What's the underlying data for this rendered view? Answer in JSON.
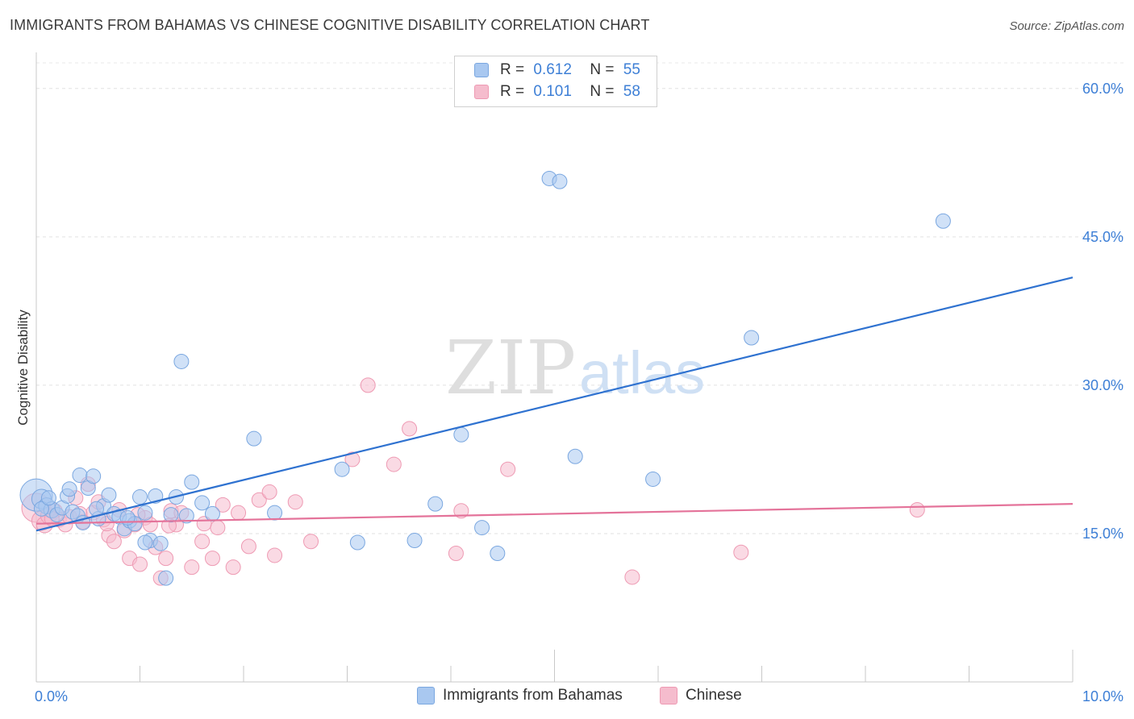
{
  "header": {
    "title": "IMMIGRANTS FROM BAHAMAS VS CHINESE COGNITIVE DISABILITY CORRELATION CHART",
    "source": "Source: ZipAtlas.com"
  },
  "watermark": {
    "zip": "ZIP",
    "atlas": "atlas"
  },
  "legend": {
    "r_label": "R =",
    "n_label": "N =",
    "rows": [
      {
        "r": "0.612",
        "n": "55"
      },
      {
        "r": "0.101",
        "n": "58"
      }
    ]
  },
  "colors": {
    "series1_fill": "#a9c8f0",
    "series1_stroke": "#7aa7e0",
    "series1_line": "#2f72d0",
    "series2_fill": "#f5bccd",
    "series2_stroke": "#ee9ab3",
    "series2_line": "#e4739a",
    "axis_label": "#3d7fd6"
  },
  "chart_data": {
    "type": "scatter",
    "title": "IMMIGRANTS FROM BAHAMAS VS CHINESE COGNITIVE DISABILITY CORRELATION CHART",
    "xlabel": "",
    "ylabel": "Cognitive Disability",
    "xlim": [
      0,
      10
    ],
    "ylim": [
      0,
      63
    ],
    "x_tick_labels": [
      "0.0%",
      "10.0%"
    ],
    "y_ticks": [
      15,
      30,
      45,
      60
    ],
    "y_tick_labels": [
      "15.0%",
      "30.0%",
      "45.0%",
      "60.0%"
    ],
    "grid": "horizontal dashed",
    "legend_placement": "top-center and bottom",
    "series": [
      {
        "name": "Immigrants from Bahamas",
        "r": 0.612,
        "n": 55,
        "trend": [
          [
            0,
            15.3
          ],
          [
            10,
            40.9
          ]
        ],
        "points": [
          [
            0.0,
            18.9,
            20
          ],
          [
            0.05,
            18.5,
            12
          ],
          [
            0.1,
            17.8,
            10
          ],
          [
            0.15,
            17.4,
            10
          ],
          [
            0.2,
            16.9,
            9
          ],
          [
            0.25,
            17.6,
            9
          ],
          [
            0.3,
            18.8,
            9
          ],
          [
            0.35,
            17.2,
            9
          ],
          [
            0.4,
            16.8,
            9
          ],
          [
            0.45,
            16.1,
            9
          ],
          [
            0.42,
            20.9,
            9
          ],
          [
            0.5,
            19.6,
            9
          ],
          [
            0.55,
            20.8,
            9
          ],
          [
            0.6,
            16.5,
            9
          ],
          [
            0.65,
            17.8,
            9
          ],
          [
            0.7,
            18.9,
            9
          ],
          [
            0.75,
            17.0,
            9
          ],
          [
            0.8,
            16.7,
            9
          ],
          [
            0.85,
            15.5,
            9
          ],
          [
            0.9,
            16.3,
            9
          ],
          [
            0.95,
            16.0,
            9
          ],
          [
            1.0,
            18.7,
            9
          ],
          [
            1.05,
            17.1,
            9
          ],
          [
            1.1,
            14.3,
            9
          ],
          [
            1.15,
            18.8,
            9
          ],
          [
            1.2,
            14.0,
            9
          ],
          [
            1.25,
            10.5,
            9
          ],
          [
            1.3,
            16.9,
            9
          ],
          [
            1.35,
            18.7,
            9
          ],
          [
            1.4,
            32.4,
            9
          ],
          [
            1.45,
            16.8,
            9
          ],
          [
            1.5,
            20.2,
            9
          ],
          [
            1.6,
            18.1,
            9
          ],
          [
            1.7,
            17.0,
            9
          ],
          [
            2.1,
            24.6,
            9
          ],
          [
            2.3,
            17.1,
            9
          ],
          [
            2.95,
            21.5,
            9
          ],
          [
            3.1,
            14.1,
            9
          ],
          [
            3.65,
            14.3,
            9
          ],
          [
            3.85,
            18.0,
            9
          ],
          [
            4.1,
            25.0,
            9
          ],
          [
            4.3,
            15.6,
            9
          ],
          [
            4.45,
            13.0,
            9
          ],
          [
            4.95,
            50.9,
            9
          ],
          [
            5.05,
            50.6,
            9
          ],
          [
            5.2,
            22.8,
            9
          ],
          [
            5.95,
            20.5,
            9
          ],
          [
            6.9,
            34.8,
            9
          ],
          [
            8.75,
            46.6,
            9
          ],
          [
            0.05,
            17.5,
            9
          ],
          [
            0.12,
            18.6,
            9
          ],
          [
            0.32,
            19.5,
            9
          ],
          [
            0.58,
            17.5,
            9
          ],
          [
            0.88,
            16.6,
            9
          ],
          [
            1.05,
            14.1,
            9
          ]
        ]
      },
      {
        "name": "Chinese",
        "r": 0.101,
        "n": 58,
        "trend": [
          [
            0,
            16.0
          ],
          [
            10,
            18.0
          ]
        ],
        "points": [
          [
            0.0,
            17.6,
            18
          ],
          [
            0.05,
            16.3,
            12
          ],
          [
            0.08,
            15.9,
            10
          ],
          [
            0.12,
            16.8,
            10
          ],
          [
            0.18,
            17.3,
            9
          ],
          [
            0.22,
            16.4,
            9
          ],
          [
            0.28,
            15.9,
            9
          ],
          [
            0.32,
            16.7,
            9
          ],
          [
            0.38,
            18.6,
            9
          ],
          [
            0.45,
            16.2,
            9
          ],
          [
            0.5,
            20.0,
            9
          ],
          [
            0.55,
            17.1,
            9
          ],
          [
            0.6,
            18.2,
            9
          ],
          [
            0.65,
            16.4,
            9
          ],
          [
            0.7,
            14.8,
            9
          ],
          [
            0.75,
            14.2,
            9
          ],
          [
            0.8,
            17.4,
            9
          ],
          [
            0.85,
            15.3,
            9
          ],
          [
            0.9,
            12.5,
            9
          ],
          [
            0.95,
            15.9,
            9
          ],
          [
            1.0,
            11.9,
            9
          ],
          [
            1.05,
            16.6,
            9
          ],
          [
            1.1,
            15.9,
            9
          ],
          [
            1.15,
            13.6,
            9
          ],
          [
            1.2,
            10.5,
            9
          ],
          [
            1.25,
            12.5,
            9
          ],
          [
            1.3,
            17.3,
            9
          ],
          [
            1.35,
            15.9,
            9
          ],
          [
            1.4,
            17.1,
            9
          ],
          [
            1.5,
            11.6,
            9
          ],
          [
            1.6,
            14.2,
            9
          ],
          [
            1.7,
            12.5,
            9
          ],
          [
            1.75,
            15.6,
            9
          ],
          [
            1.8,
            17.9,
            9
          ],
          [
            1.9,
            11.6,
            9
          ],
          [
            1.95,
            17.1,
            9
          ],
          [
            2.05,
            13.7,
            9
          ],
          [
            2.15,
            18.4,
            9
          ],
          [
            2.25,
            19.2,
            9
          ],
          [
            2.3,
            12.8,
            9
          ],
          [
            2.5,
            18.2,
            9
          ],
          [
            2.65,
            14.2,
            9
          ],
          [
            3.05,
            22.5,
            9
          ],
          [
            3.2,
            30.0,
            9
          ],
          [
            3.45,
            22.0,
            9
          ],
          [
            3.6,
            25.6,
            9
          ],
          [
            4.05,
            13.0,
            9
          ],
          [
            4.1,
            17.3,
            9
          ],
          [
            4.55,
            21.5,
            9
          ],
          [
            5.75,
            10.6,
            9
          ],
          [
            6.8,
            13.1,
            9
          ],
          [
            8.5,
            17.4,
            9
          ],
          [
            0.15,
            16.5,
            9
          ],
          [
            0.42,
            17.0,
            9
          ],
          [
            0.68,
            16.0,
            9
          ],
          [
            0.98,
            16.9,
            9
          ],
          [
            1.28,
            15.8,
            9
          ],
          [
            1.62,
            16.0,
            9
          ]
        ]
      }
    ]
  }
}
